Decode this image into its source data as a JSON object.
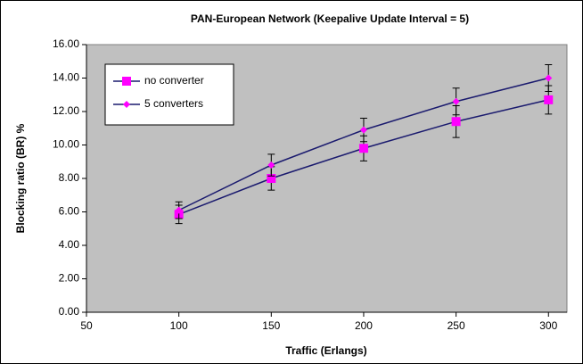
{
  "chart_data": {
    "type": "line",
    "title": "PAN-European Network (Keepalive Update Interval = 5)",
    "x_label": "Traffic (Erlangs)",
    "y_label": "Blocking ratio (BR) %",
    "x": [
      100,
      150,
      200,
      250,
      300
    ],
    "series": [
      {
        "name": "no converter",
        "color": "#ff00ff",
        "line_color": "#1a1a6e",
        "marker": "square",
        "values": [
          5.85,
          8.0,
          9.8,
          11.4,
          12.7
        ],
        "errors": [
          0.55,
          0.7,
          0.75,
          0.95,
          0.85
        ]
      },
      {
        "name": "5 converters",
        "color": "#ff00ff",
        "line_color": "#1a1a6e",
        "marker": "diamond",
        "values": [
          6.1,
          8.8,
          10.9,
          12.6,
          14.0
        ],
        "errors": [
          0.5,
          0.65,
          0.7,
          0.8,
          0.8
        ]
      }
    ],
    "xlim": [
      50,
      310
    ],
    "xticks": [
      50,
      100,
      150,
      200,
      250,
      300
    ],
    "ylim": [
      0,
      16
    ],
    "yticks": [
      {
        "value": 0,
        "label": "0.00"
      },
      {
        "value": 2,
        "label": "2.00"
      },
      {
        "value": 4,
        "label": "4.00"
      },
      {
        "value": 6,
        "label": "6.00"
      },
      {
        "value": 8,
        "label": "8.00"
      },
      {
        "value": 10,
        "label": "10.00"
      },
      {
        "value": 12,
        "label": "12.00"
      },
      {
        "value": 14,
        "label": "14.00"
      },
      {
        "value": 16,
        "label": "16.00"
      }
    ],
    "legend": "upper left",
    "plot_background": "#c0c0c0"
  }
}
